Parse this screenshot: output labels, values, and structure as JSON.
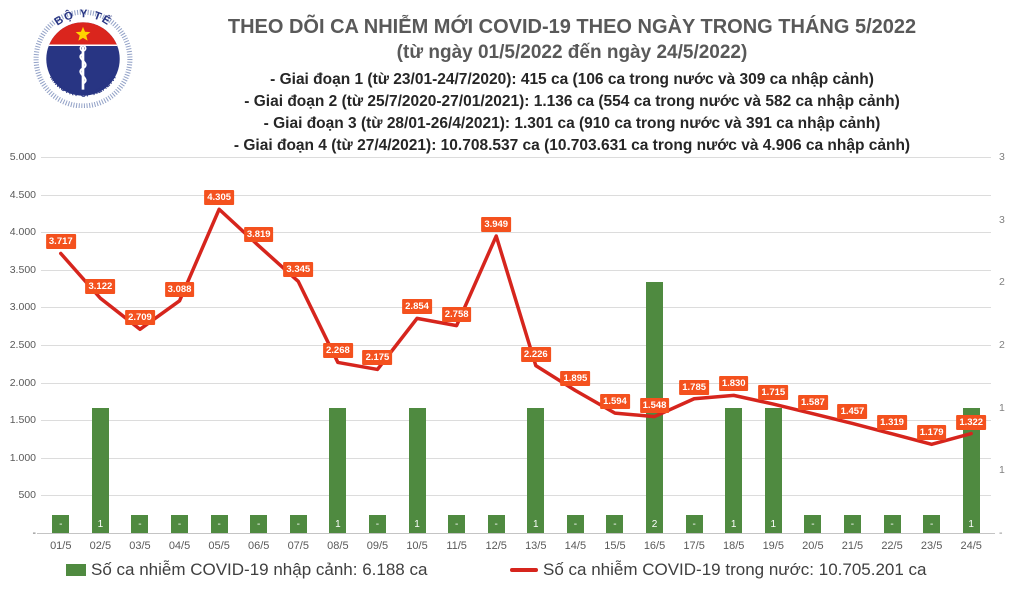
{
  "header": {
    "logo": {
      "top_text": "BỘ Y TẾ",
      "bottom_text": "MINISTRY OF HEALTH"
    },
    "title": "THEO DÕI CA NHIỄM MỚI COVID-19 THEO NGÀY TRONG THÁNG 5/2022",
    "subtitle": "(từ ngày 01/5/2022 đến ngày 24/5/2022)",
    "phases": [
      "- Giai đoạn 1 (từ 23/01-24/7/2020): 415 ca (106 ca trong nước và 309 ca nhập cảnh)",
      "- Giai đoạn 2 (từ 25/7/2020-27/01/2021): 1.136 ca (554 ca trong nước và 582 ca nhập cảnh)",
      "- Giai đoạn 3 (từ 28/01-26/4/2021): 1.301 ca (910 ca trong nước và 391 ca nhập cảnh)",
      "- Giai đoạn 4 (từ 27/4/2021): 10.708.537 ca (10.703.631 ca trong nước và 4.906 ca nhập cảnh)"
    ]
  },
  "chart_data": {
    "type": "line+bar",
    "title": "THEO DÕI CA NHIỄM MỚI COVID-19 THEO NGÀY TRONG THÁNG 5/2022",
    "categories": [
      "01/5",
      "02/5",
      "03/5",
      "04/5",
      "05/5",
      "06/5",
      "07/5",
      "08/5",
      "09/5",
      "10/5",
      "11/5",
      "12/5",
      "13/5",
      "14/5",
      "15/5",
      "16/5",
      "17/5",
      "18/5",
      "19/5",
      "20/5",
      "21/5",
      "22/5",
      "23/5",
      "24/5"
    ],
    "series": [
      {
        "name": "Số ca nhiễm COVID-19 trong nước",
        "type": "line",
        "axis": "left",
        "color": "#d6251d",
        "label_color": "#f4511e",
        "values": [
          3717,
          3122,
          2709,
          3088,
          4305,
          3819,
          3345,
          2268,
          2175,
          2854,
          2758,
          3949,
          2226,
          1895,
          1594,
          1548,
          1785,
          1830,
          1715,
          1587,
          1457,
          1319,
          1179,
          1322
        ],
        "labels": [
          "3.717",
          "3.122",
          "2.709",
          "3.088",
          "4.305",
          "3.819",
          "3.345",
          "2.268",
          "2.175",
          "2.854",
          "2.758",
          "3.949",
          "2.226",
          "1.895",
          "1.594",
          "1.548",
          "1.785",
          "1.830",
          "1.715",
          "1.587",
          "1.457",
          "1.319",
          "1.179",
          "1.322"
        ]
      },
      {
        "name": "Số ca nhiễm COVID-19 nhập cảnh",
        "type": "bar",
        "axis": "right",
        "color": "#4f8a40",
        "values": [
          0,
          1,
          0,
          0,
          0,
          0,
          0,
          1,
          0,
          1,
          0,
          0,
          1,
          0,
          0,
          2,
          0,
          1,
          1,
          0,
          0,
          0,
          0,
          1
        ],
        "labels": [
          "-",
          "1",
          "-",
          "-",
          "-",
          "-",
          "-",
          "1",
          "-",
          "1",
          "-",
          "-",
          "1",
          "-",
          "-",
          "2",
          "-",
          "1",
          "1",
          "-",
          "-",
          "-",
          "-",
          "1"
        ]
      }
    ],
    "left_axis": {
      "min": 0,
      "max": 5000,
      "step": 500,
      "tick_labels": [
        "5.000",
        "4.500",
        "4.000",
        "3.500",
        "3.000",
        "2.500",
        "2.000",
        "1.500",
        "1.000",
        "500",
        "-"
      ]
    },
    "right_axis": {
      "min": 0,
      "max": 3,
      "step": 0.5,
      "tick_labels": [
        "3",
        "3",
        "2",
        "2",
        "1",
        "1",
        "-"
      ]
    },
    "grid": true,
    "legend_position": "bottom"
  },
  "legend": {
    "bar_label": "Số ca nhiễm COVID-19 nhập cảnh: 6.188 ca",
    "line_label": "Số ca nhiễm COVID-19 trong nước: 10.705.201 ca"
  }
}
